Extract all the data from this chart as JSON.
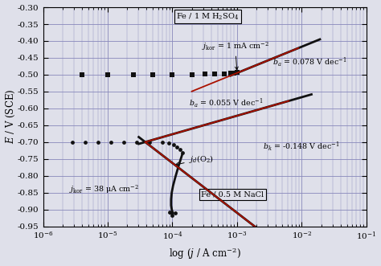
{
  "xlabel": "log ($j$ / A cm$^{-2}$)",
  "ylabel": "$E$ / V (SCE)",
  "ylim": [
    -0.95,
    -0.3
  ],
  "yticks": [
    -0.95,
    -0.9,
    -0.85,
    -0.8,
    -0.75,
    -0.7,
    -0.65,
    -0.6,
    -0.55,
    -0.5,
    -0.45,
    -0.4,
    -0.35,
    -0.3
  ],
  "bg_color": "#dfe0ea",
  "grid_color": "#8888bb",
  "label1": "Fe / 1 M H$_2$SO$_4$",
  "label2": "Fe / 0.5 M NaCl",
  "annotation_jkor1": "$j_{\\mathrm{kor}}$ = 1 mA cm$^{-2}$",
  "annotation_jkor2": "$j_{\\mathrm{kor}}$ = 38 μA cm$^{-2}$",
  "annotation_ba1": "$b_a$ = 0.078 V dec$^{-1}$",
  "annotation_ba2": "$b_a$ = 0.055 V dec$^{-1}$",
  "annotation_bk": "$b_k$ = -0.148 V dec$^{-1}$",
  "annotation_jd": "$j_d$(O$_2$)",
  "curve_color": "#111111",
  "tafel_color": "#aa1100"
}
